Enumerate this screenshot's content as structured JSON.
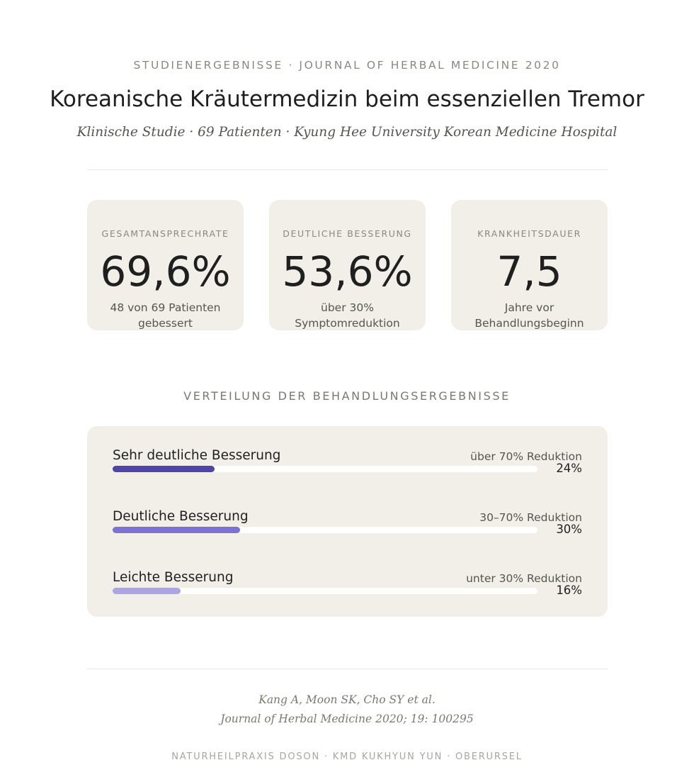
{
  "header": {
    "eyebrow": "STUDIENERGEBNISSE · JOURNAL OF HERBAL MEDICINE 2020",
    "title": "Koreanische Kräutermedizin beim essenziellen Tremor",
    "subtitle": "Klinische Studie · 69 Patienten · Kyung Hee University Korean Medicine Hospital"
  },
  "stats": [
    {
      "label": "GESAMTANSPRECHRATE",
      "value": "69,6%",
      "desc": "48 von 69 Patienten gebessert"
    },
    {
      "label": "DEUTLICHE BESSERUNG",
      "value": "53,6%",
      "desc": "über 30% Symptomreduktion"
    },
    {
      "label": "KRANKHEITSDAUER",
      "value": "7,5",
      "desc": "Jahre vor Behandlungsbeginn"
    }
  ],
  "distribution": {
    "title": "VERTEILUNG DER BEHANDLUNGSERGEBNISSE",
    "rows": [
      {
        "name": "Sehr deutliche Besserung",
        "note": "über 70% Reduktion",
        "pct": "24%",
        "value": 24,
        "color": "#4f44a8"
      },
      {
        "name": "Deutliche Besserung",
        "note": "30–70% Reduktion",
        "pct": "30%",
        "value": 30,
        "color": "#7c72d4"
      },
      {
        "name": "Leichte Besserung",
        "note": "unter 30% Reduktion",
        "pct": "16%",
        "value": 16,
        "color": "#aba5e5"
      }
    ]
  },
  "citation": {
    "authors": "Kang A, Moon SK, Cho SY et al.",
    "journal": "Journal of Herbal Medicine 2020; 19: 100295"
  },
  "footer": "NATURHEILPRAXIS DOSON · KMD KUKHYUN YUN · OBERURSEL"
}
